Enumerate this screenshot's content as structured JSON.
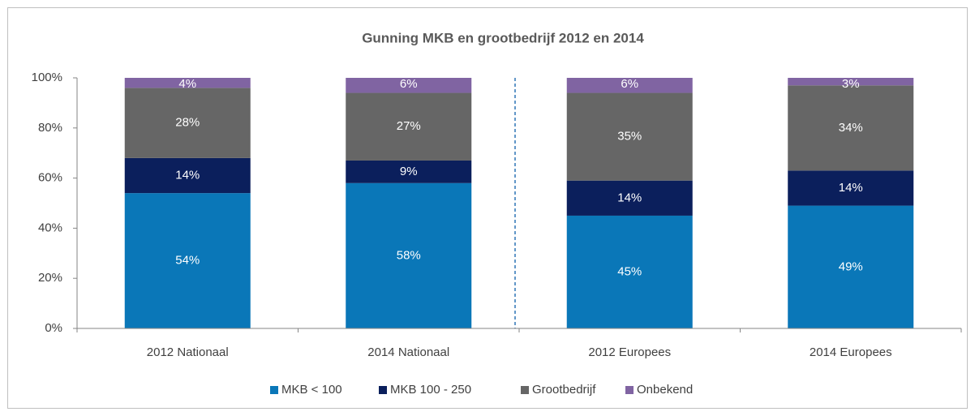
{
  "chart_data": {
    "type": "stacked_bar",
    "title": "Gunning MKB en grootbedrijf 2012 en 2014",
    "categories": [
      "2012 Nationaal",
      "2014 Nationaal",
      "2012 Europees",
      "2014 Europees"
    ],
    "series": [
      {
        "name": "MKB < 100",
        "color": "#0a77b8",
        "values": [
          54,
          58,
          45,
          49
        ],
        "value_labels": [
          "54%",
          "58%",
          "45%",
          "49%"
        ]
      },
      {
        "name": "MKB 100 - 250",
        "color": "#0b1f5c",
        "values": [
          14,
          9,
          14,
          14
        ],
        "value_labels": [
          "14%",
          "9%",
          "14%",
          "14%"
        ]
      },
      {
        "name": "Grootbedrijf",
        "color": "#666666",
        "values": [
          28,
          27,
          35,
          34
        ],
        "value_labels": [
          "28%",
          "27%",
          "35%",
          "34%"
        ]
      },
      {
        "name": "Onbekend",
        "color": "#8064a2",
        "values": [
          4,
          6,
          6,
          3
        ],
        "value_labels": [
          "4%",
          "6%",
          "6%",
          "3%"
        ]
      }
    ],
    "ylim": [
      0,
      100
    ],
    "yticks": [
      {
        "value": 0,
        "label": "0%"
      },
      {
        "value": 20,
        "label": "20%"
      },
      {
        "value": 40,
        "label": "40%"
      },
      {
        "value": 60,
        "label": "60%"
      },
      {
        "value": 80,
        "label": "80%"
      },
      {
        "value": 100,
        "label": "100%"
      }
    ],
    "legend": "bottom"
  }
}
